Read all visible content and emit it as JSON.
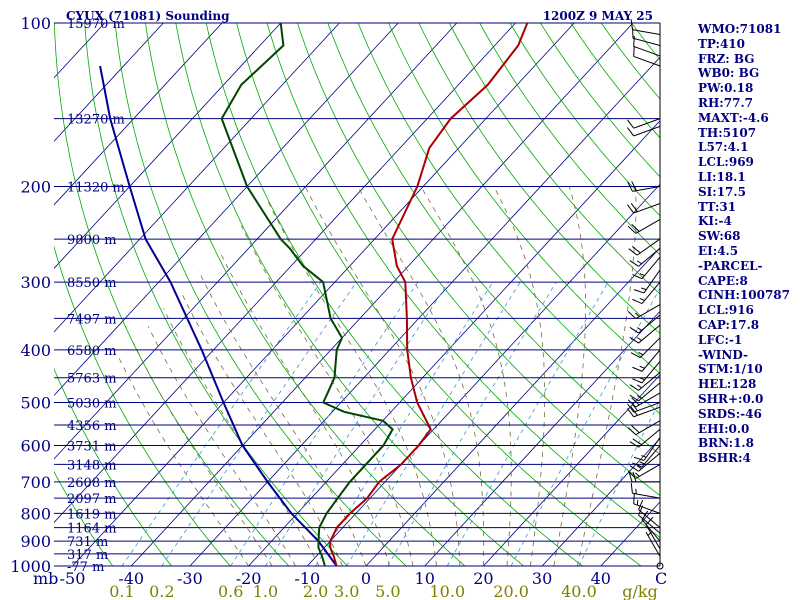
{
  "header": {
    "station": "CYUX (71081) Sounding",
    "time": "1200Z  9 MAY 25"
  },
  "chart_data": {
    "type": "skew-t log-p",
    "pressure_levels": [
      100,
      200,
      300,
      400,
      500,
      600,
      700,
      800,
      900,
      1000
    ],
    "isobar_count": 20,
    "heights": [
      {
        "p": 100,
        "label": "15970 m"
      },
      {
        "p": 150,
        "label": "13270 m"
      },
      {
        "p": 200,
        "label": "11320 m"
      },
      {
        "p": 250,
        "label": "9800 m"
      },
      {
        "p": 300,
        "label": "8550 m"
      },
      {
        "p": 350,
        "label": "7497 m"
      },
      {
        "p": 400,
        "label": "6580 m"
      },
      {
        "p": 450,
        "label": "5763 m"
      },
      {
        "p": 500,
        "label": "5030 m"
      },
      {
        "p": 550,
        "label": "4356 m"
      },
      {
        "p": 600,
        "label": "3731 m"
      },
      {
        "p": 650,
        "label": "3148 m"
      },
      {
        "p": 700,
        "label": "2608 m"
      },
      {
        "p": 750,
        "label": "2097 m"
      },
      {
        "p": 800,
        "label": "1619 m"
      },
      {
        "p": 850,
        "label": "1164 m"
      },
      {
        "p": 900,
        "label": "731 m"
      },
      {
        "p": 950,
        "label": "317 m"
      },
      {
        "p": 1000,
        "label": "-77 m"
      }
    ],
    "x_axis_unit": "mb",
    "temperature_ticks": [
      -50,
      -40,
      -30,
      -20,
      -10,
      0,
      10,
      20,
      30,
      40
    ],
    "mixing_ratio_unit": "g/kg",
    "mixing_ratio_ticks": [
      {
        "label": "0.1",
        "value": 0.1
      },
      {
        "label": "0.2",
        "value": 0.2
      },
      {
        "label": "0.6",
        "value": 0.6
      },
      {
        "label": "1.0",
        "value": 1.0
      },
      {
        "label": "2.0",
        "value": 2.0
      },
      {
        "label": "3.0",
        "value": 3.0
      },
      {
        "label": "5.0",
        "value": 5.0
      },
      {
        "label": "10.0",
        "value": 10.0
      },
      {
        "label": "20.0",
        "value": 20.0
      },
      {
        "label": "40.0",
        "value": 40.0
      }
    ],
    "temperature": [
      [
        1000,
        -5
      ],
      [
        960,
        -7
      ],
      [
        925,
        -9
      ],
      [
        900,
        -10
      ],
      [
        850,
        -11
      ],
      [
        800,
        -11
      ],
      [
        750,
        -10.5
      ],
      [
        700,
        -11
      ],
      [
        650,
        -10
      ],
      [
        600,
        -10
      ],
      [
        560,
        -10.5
      ],
      [
        500,
        -17
      ],
      [
        450,
        -22
      ],
      [
        400,
        -27
      ],
      [
        350,
        -32
      ],
      [
        300,
        -38
      ],
      [
        280,
        -42
      ],
      [
        250,
        -47
      ],
      [
        200,
        -51
      ],
      [
        170,
        -55
      ],
      [
        150,
        -56
      ],
      [
        130,
        -55
      ],
      [
        110,
        -56
      ],
      [
        100,
        -58
      ]
    ],
    "dewpoint": [
      [
        1000,
        -7
      ],
      [
        960,
        -9
      ],
      [
        925,
        -11
      ],
      [
        900,
        -12
      ],
      [
        850,
        -14
      ],
      [
        800,
        -15
      ],
      [
        750,
        -15.5
      ],
      [
        700,
        -16
      ],
      [
        650,
        -16
      ],
      [
        600,
        -16
      ],
      [
        560,
        -17
      ],
      [
        540,
        -20
      ],
      [
        520,
        -28
      ],
      [
        500,
        -33
      ],
      [
        450,
        -35
      ],
      [
        400,
        -39
      ],
      [
        380,
        -40
      ],
      [
        350,
        -45
      ],
      [
        300,
        -52
      ],
      [
        280,
        -58
      ],
      [
        260,
        -63
      ],
      [
        250,
        -66
      ],
      [
        200,
        -80
      ],
      [
        150,
        -95
      ],
      [
        130,
        -97
      ],
      [
        110,
        -96
      ],
      [
        100,
        -100
      ]
    ],
    "parcel_path": [
      [
        1000,
        -5
      ],
      [
        900,
        -12
      ],
      [
        800,
        -21
      ],
      [
        700,
        -30
      ],
      [
        600,
        -40
      ],
      [
        500,
        -50
      ],
      [
        400,
        -62
      ],
      [
        300,
        -78
      ],
      [
        250,
        -89
      ],
      [
        200,
        -100
      ],
      [
        150,
        -114
      ],
      [
        120,
        -124
      ]
    ],
    "wind_barbs": [
      {
        "p": 1000,
        "dir": 0,
        "kt": 0
      },
      {
        "p": 960,
        "dir": 330,
        "kt": 5
      },
      {
        "p": 930,
        "dir": 330,
        "kt": 10
      },
      {
        "p": 900,
        "dir": 320,
        "kt": 10
      },
      {
        "p": 870,
        "dir": 310,
        "kt": 10
      },
      {
        "p": 850,
        "dir": 310,
        "kt": 10
      },
      {
        "p": 800,
        "dir": 290,
        "kt": 15
      },
      {
        "p": 750,
        "dir": 280,
        "kt": 15
      },
      {
        "p": 700,
        "dir": 270,
        "kt": 20
      },
      {
        "p": 650,
        "dir": 240,
        "kt": 15
      },
      {
        "p": 620,
        "dir": 230,
        "kt": 15
      },
      {
        "p": 600,
        "dir": 220,
        "kt": 15
      },
      {
        "p": 580,
        "dir": 215,
        "kt": 15
      },
      {
        "p": 560,
        "dir": 230,
        "kt": 20
      },
      {
        "p": 540,
        "dir": 240,
        "kt": 20
      },
      {
        "p": 510,
        "dir": 250,
        "kt": 20
      },
      {
        "p": 500,
        "dir": 250,
        "kt": 20
      },
      {
        "p": 480,
        "dir": 240,
        "kt": 20
      },
      {
        "p": 460,
        "dir": 230,
        "kt": 15
      },
      {
        "p": 440,
        "dir": 230,
        "kt": 15
      },
      {
        "p": 420,
        "dir": 220,
        "kt": 15
      },
      {
        "p": 400,
        "dir": 220,
        "kt": 15
      },
      {
        "p": 380,
        "dir": 225,
        "kt": 15
      },
      {
        "p": 360,
        "dir": 230,
        "kt": 15
      },
      {
        "p": 345,
        "dir": 230,
        "kt": 15
      },
      {
        "p": 330,
        "dir": 240,
        "kt": 15
      },
      {
        "p": 300,
        "dir": 220,
        "kt": 15
      },
      {
        "p": 285,
        "dir": 215,
        "kt": 15
      },
      {
        "p": 270,
        "dir": 220,
        "kt": 15
      },
      {
        "p": 260,
        "dir": 230,
        "kt": 15
      },
      {
        "p": 250,
        "dir": 235,
        "kt": 20
      },
      {
        "p": 230,
        "dir": 240,
        "kt": 20
      },
      {
        "p": 215,
        "dir": 250,
        "kt": 20
      },
      {
        "p": 200,
        "dir": 260,
        "kt": 20
      },
      {
        "p": 155,
        "dir": 250,
        "kt": 10
      },
      {
        "p": 150,
        "dir": 250,
        "kt": 10
      },
      {
        "p": 120,
        "dir": 290,
        "kt": 10
      },
      {
        "p": 115,
        "dir": 290,
        "kt": 10
      },
      {
        "p": 110,
        "dir": 285,
        "kt": 10
      },
      {
        "p": 105,
        "dir": 280,
        "kt": 10
      }
    ]
  },
  "indices": [
    "WMO:71081",
    "TP:410",
    "FRZ: BG",
    "WB0: BG",
    "PW:0.18",
    "RH:77.7",
    "MAXT:-4.6",
    "TH:5107",
    "L57:4.1",
    "LCL:969",
    "LI:18.1",
    "SI:17.5",
    "TT:31",
    "KI:-4",
    "SW:68",
    "EI:4.5",
    "-PARCEL-",
    "CAPE:8",
    "CINH:100787",
    "LCL:916",
    "CAP:17.8",
    "LFC:-1",
    "-WIND-",
    "STM:1/10",
    "HEL:128",
    "SHR+:0.0",
    "SRDS:-46",
    "EHI:0.0",
    "BRN:1.8",
    "BSHR:4"
  ],
  "colors": {
    "isobar": "#00007f",
    "isotherm": "#00007f",
    "dry_adiabat": "#00aa00",
    "moist_adiabat": "#7a6a3a",
    "mixing_ratio": "#3399cc",
    "temperature": "#aa0000",
    "dewpoint": "#004400",
    "parcel": "#000099",
    "label": "#000080",
    "mixing_label": "#808000",
    "barb": "#000000"
  }
}
